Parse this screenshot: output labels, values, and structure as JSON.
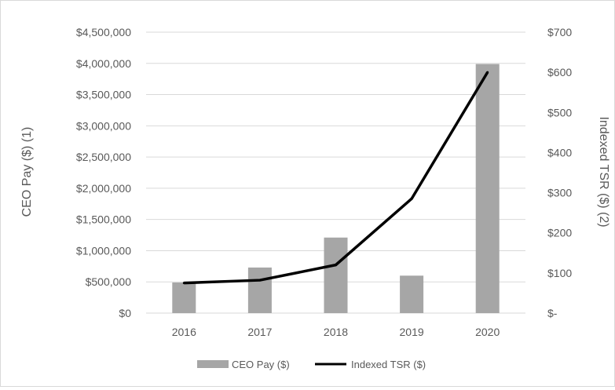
{
  "chart_data": {
    "type": "bar+line",
    "title": "",
    "categories": [
      "2016",
      "2017",
      "2018",
      "2019",
      "2020"
    ],
    "series": [
      {
        "name": "CEO Pay ($)",
        "type": "bar",
        "axis": "left",
        "values": [
          490000,
          730000,
          1210000,
          600000,
          3990000
        ],
        "color": "#a6a6a6"
      },
      {
        "name": "Indexed TSR ($)",
        "type": "line",
        "axis": "right",
        "values": [
          75,
          82,
          120,
          285,
          600
        ],
        "color": "#000000"
      }
    ],
    "y_left": {
      "label": "CEO Pay ($) (1)",
      "min": 0,
      "max": 4500000,
      "ticks": [
        {
          "value": 0,
          "label": "$0"
        },
        {
          "value": 500000,
          "label": "$500,000"
        },
        {
          "value": 1000000,
          "label": "$1,000,000"
        },
        {
          "value": 1500000,
          "label": "$1,500,000"
        },
        {
          "value": 2000000,
          "label": "$2,000,000"
        },
        {
          "value": 2500000,
          "label": "$2,500,000"
        },
        {
          "value": 3000000,
          "label": "$3,000,000"
        },
        {
          "value": 3500000,
          "label": "$3,500,000"
        },
        {
          "value": 4000000,
          "label": "$4,000,000"
        },
        {
          "value": 4500000,
          "label": "$4,500,000"
        }
      ]
    },
    "y_right": {
      "label": "Indexed TSR ($) (2)",
      "min": 0,
      "max": 700,
      "ticks": [
        {
          "value": 0,
          "label": "$-"
        },
        {
          "value": 100,
          "label": "$100"
        },
        {
          "value": 200,
          "label": "$200"
        },
        {
          "value": 300,
          "label": "$300"
        },
        {
          "value": 400,
          "label": "$400"
        },
        {
          "value": 500,
          "label": "$500"
        },
        {
          "value": 600,
          "label": "$600"
        },
        {
          "value": 700,
          "label": "$700"
        }
      ]
    },
    "grid": true,
    "gridline_color": "#d9d9d9",
    "legend_position": "bottom"
  }
}
